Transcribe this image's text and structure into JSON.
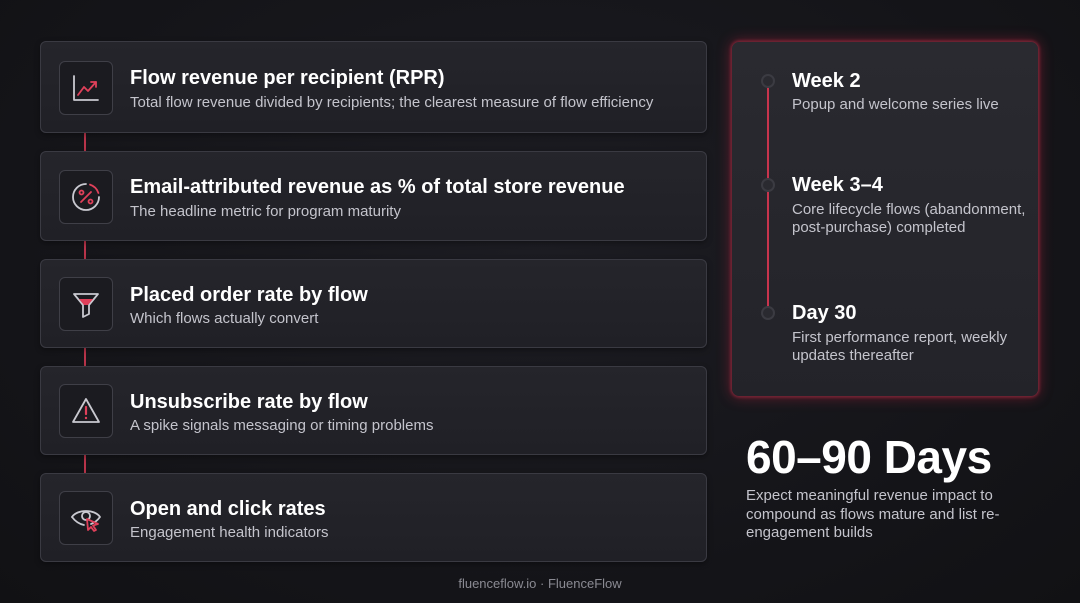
{
  "metrics": [
    {
      "title": "Flow revenue per recipient (RPR)",
      "description": "Total flow revenue divided by recipients; the clearest measure of flow efficiency",
      "icon": "trend-chart-icon"
    },
    {
      "title": "Email-attributed revenue as % of total store revenue",
      "description": "The headline metric for program maturity",
      "icon": "percent-icon"
    },
    {
      "title": "Placed order rate by flow",
      "description": "Which flows actually convert",
      "icon": "funnel-icon"
    },
    {
      "title": "Unsubscribe rate by flow",
      "description": "A spike signals messaging or timing problems",
      "icon": "warning-icon"
    },
    {
      "title": "Open and click rates",
      "description": "Engagement health indicators",
      "icon": "eye-cursor-icon"
    }
  ],
  "timeline": [
    {
      "title": "Week 2",
      "description": "Popup and welcome series live"
    },
    {
      "title": "Week 3–4",
      "description": "Core lifecycle flows (abandonment, post-purchase) completed"
    },
    {
      "title": "Day 30",
      "description": "First performance report, weekly updates thereafter"
    }
  ],
  "summary": {
    "title": "60–90 Days",
    "description": "Expect meaningful revenue impact to compound as flows mature and list re-engagement builds"
  },
  "footer": "fluenceflow.io · FluenceFlow",
  "colors": {
    "accent": "#e0405a",
    "background": "#16161b",
    "card": "#222228"
  }
}
